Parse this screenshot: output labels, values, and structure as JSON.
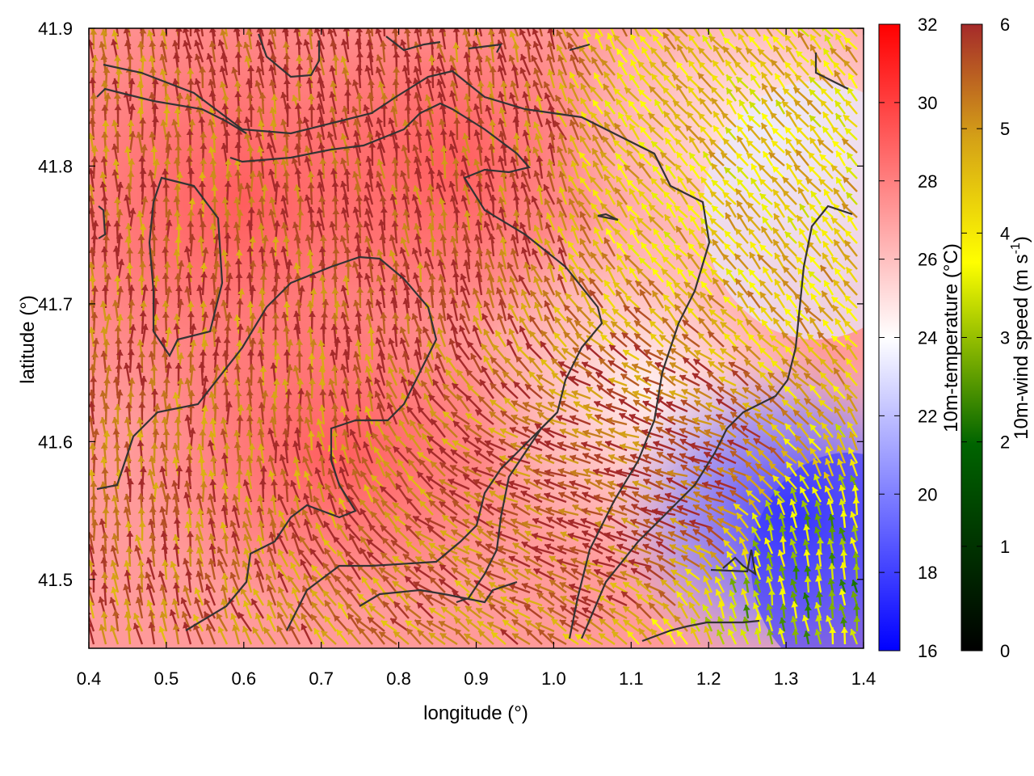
{
  "chart_data": {
    "type": "heatmap",
    "xlabel": "longitude (°)",
    "ylabel": "latitude (°)",
    "xlim": [
      0.4,
      1.4
    ],
    "ylim": [
      41.45,
      41.9
    ],
    "x_ticks": [
      "0.4",
      "0.5",
      "0.6",
      "0.7",
      "0.8",
      "0.9",
      "1.0",
      "1.1",
      "1.2",
      "1.3",
      "1.4"
    ],
    "y_ticks": [
      "41.5",
      "41.6",
      "41.7",
      "41.8",
      "41.9"
    ],
    "temperature_colorbar": {
      "label": "10m-temperature (°C)",
      "range": [
        16,
        32
      ],
      "ticks": [
        "16",
        "18",
        "20",
        "22",
        "24",
        "26",
        "28",
        "30",
        "32"
      ],
      "colors": [
        "#0000ff",
        "#ffffff",
        "#ff0000"
      ]
    },
    "wind_colorbar": {
      "label_main": "10m-wind speed (m s",
      "label_sup": "-1",
      "label_end": ")",
      "range": [
        0,
        6
      ],
      "ticks": [
        "0",
        "1",
        "2",
        "3",
        "4",
        "5",
        "6"
      ],
      "colors": [
        "#000000",
        "#006400",
        "#ffff00",
        "#d4a017",
        "#a52a2a"
      ]
    },
    "temperature_field_samples": [
      {
        "lon": 0.5,
        "lat": 41.8,
        "t": 28.5
      },
      {
        "lon": 0.8,
        "lat": 41.8,
        "t": 28.5
      },
      {
        "lon": 1.2,
        "lat": 41.85,
        "t": 23.5
      },
      {
        "lon": 1.3,
        "lat": 41.55,
        "t": 19
      },
      {
        "lon": 1.35,
        "lat": 41.5,
        "t": 17.5
      },
      {
        "lon": 0.6,
        "lat": 41.5,
        "t": 27.5
      },
      {
        "lon": 0.75,
        "lat": 41.6,
        "t": 28
      }
    ],
    "wind_field_samples": [
      {
        "lon": 0.5,
        "lat": 41.7,
        "speed": 5.5,
        "dir_deg": 90
      },
      {
        "lon": 0.85,
        "lat": 41.8,
        "speed": 5.8,
        "dir_deg": 100
      },
      {
        "lon": 1.2,
        "lat": 41.8,
        "speed": 4.2,
        "dir_deg": 130
      },
      {
        "lon": 1.15,
        "lat": 41.55,
        "speed": 5.8,
        "dir_deg": 160
      },
      {
        "lon": 1.33,
        "lat": 41.5,
        "speed": 3.0,
        "dir_deg": 100
      }
    ]
  }
}
